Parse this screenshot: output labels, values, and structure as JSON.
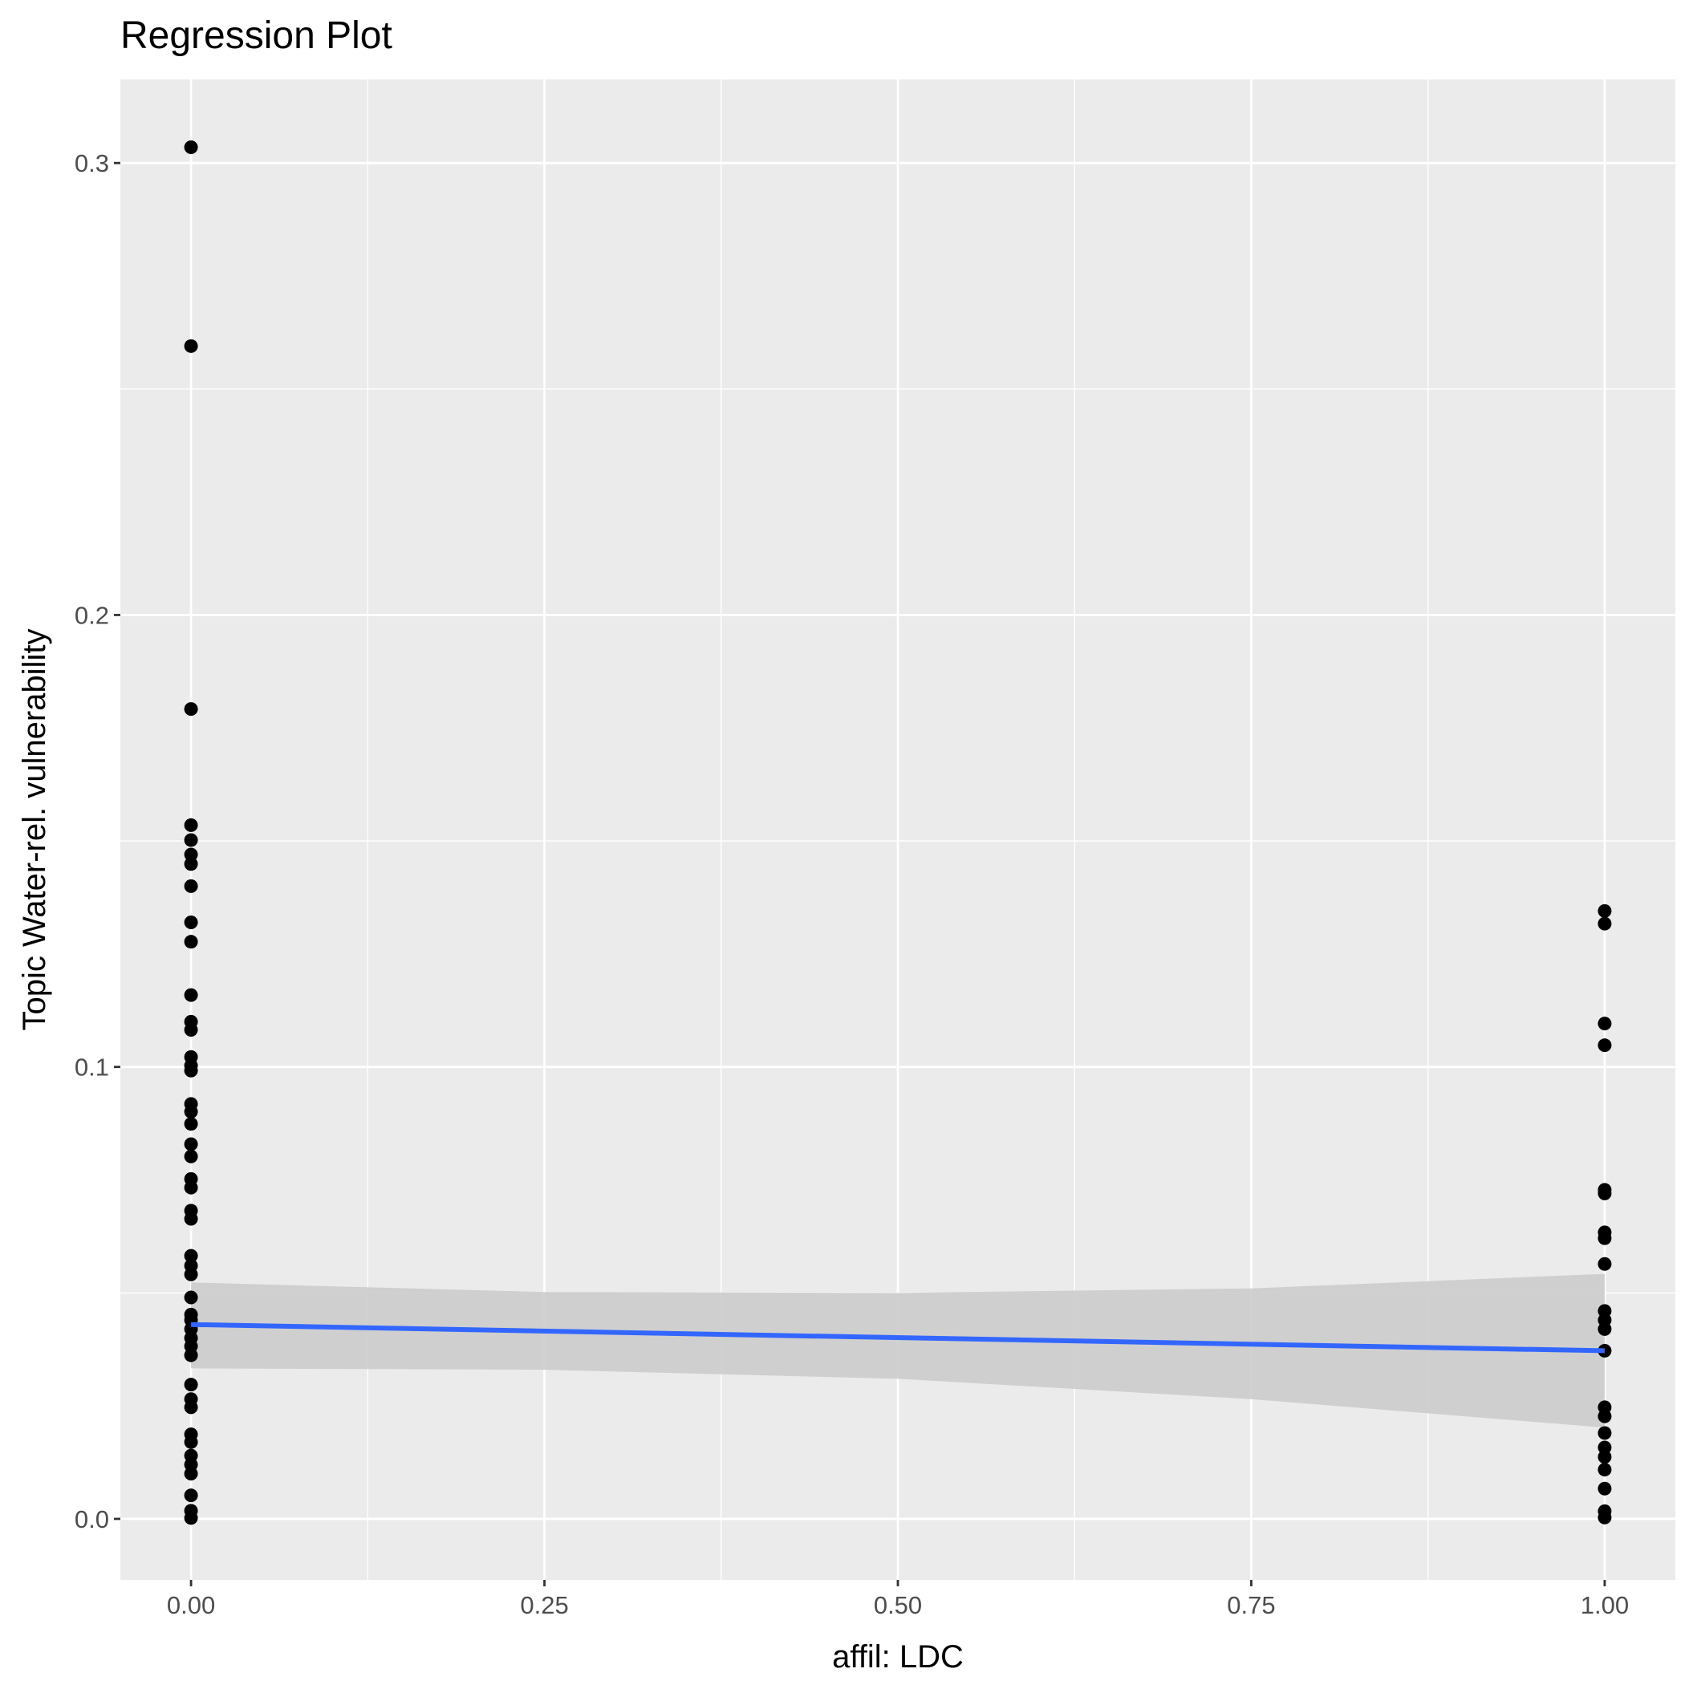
{
  "chart_data": {
    "type": "scatter",
    "title": "Regression Plot",
    "xlabel": "affil: LDC",
    "ylabel": "Topic Water-rel. vulnerability",
    "xlim": [
      -0.05,
      1.05
    ],
    "ylim": [
      -0.0135,
      0.3185
    ],
    "x_ticks": [
      0.0,
      0.25,
      0.5,
      0.75,
      1.0
    ],
    "x_tick_labels": [
      "0.00",
      "0.25",
      "0.50",
      "0.75",
      "1.00"
    ],
    "y_ticks": [
      0.0,
      0.1,
      0.2,
      0.3
    ],
    "y_tick_labels": [
      "0.0",
      "0.1",
      "0.2",
      "0.3"
    ],
    "grid": true,
    "panel_background": "#ebebeb",
    "grid_color": "#ffffff",
    "point_color": "#000000",
    "line_color": "#3366ff",
    "band_color": "#cccccc",
    "series": [
      {
        "x": 0,
        "values": [
          0.3035,
          0.2595,
          0.1792,
          0.1535,
          0.1502,
          0.147,
          0.1449,
          0.14,
          0.132,
          0.1277,
          0.1159,
          0.11,
          0.1082,
          0.1022,
          0.1003,
          0.0992,
          0.0918,
          0.0901,
          0.0874,
          0.0829,
          0.0802,
          0.0752,
          0.0733,
          0.0682,
          0.0664,
          0.0582,
          0.056,
          0.0541,
          0.049,
          0.0452,
          0.044,
          0.042,
          0.04,
          0.0382,
          0.0362,
          0.0297,
          0.0265,
          0.0247,
          0.0187,
          0.017,
          0.014,
          0.012,
          0.01,
          0.0052,
          0.0018,
          0.0002
        ]
      },
      {
        "x": 1,
        "values": [
          0.1345,
          0.1317,
          0.1096,
          0.1048,
          0.0728,
          0.072,
          0.0634,
          0.0621,
          0.0564,
          0.046,
          0.044,
          0.042,
          0.0372,
          0.0247,
          0.0227,
          0.019,
          0.0158,
          0.0137,
          0.0109,
          0.0067,
          0.0017,
          0.0003
        ]
      }
    ],
    "regression": {
      "x": [
        0,
        1
      ],
      "y": [
        0.043,
        0.0372
      ]
    },
    "confidence_band": {
      "x": [
        0,
        0.25,
        0.5,
        0.75,
        1.0
      ],
      "upper": [
        0.0523,
        0.0502,
        0.05,
        0.051,
        0.0542
      ],
      "lower": [
        0.0333,
        0.033,
        0.031,
        0.0265,
        0.0202
      ]
    }
  }
}
